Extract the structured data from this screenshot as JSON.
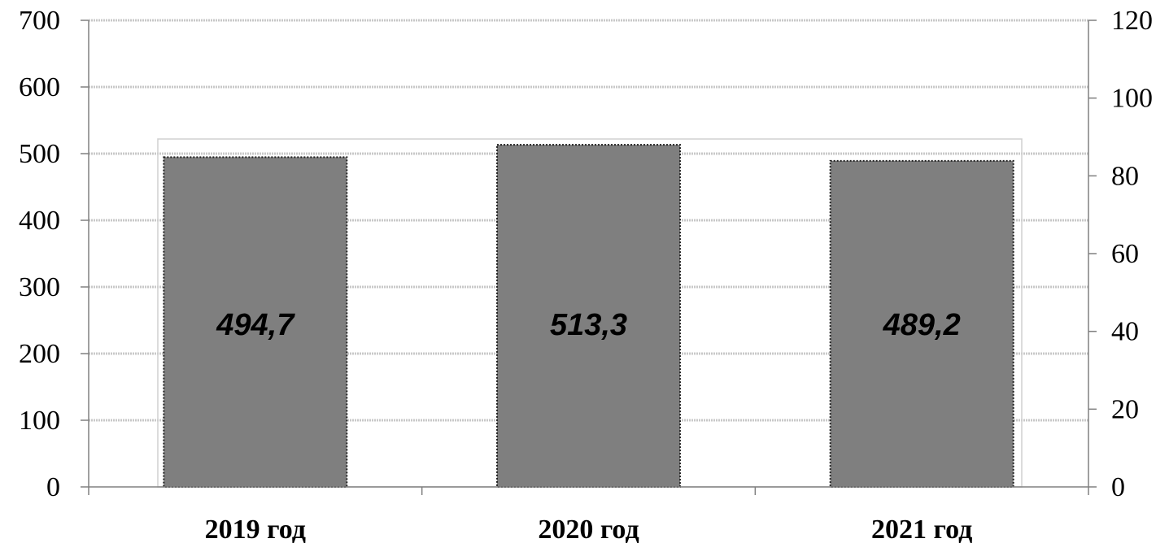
{
  "chart_data": {
    "type": "bar",
    "categories": [
      "2019 год",
      "2020 год",
      "2021 год"
    ],
    "series": [
      {
        "values": [
          494.7,
          513.3,
          489.2
        ]
      }
    ],
    "data_labels": [
      "494,7",
      "513,3",
      "489,2"
    ],
    "y_left": {
      "ylim": [
        0,
        700
      ],
      "ticks": [
        "0",
        "100",
        "200",
        "300",
        "400",
        "500",
        "600",
        "700"
      ]
    },
    "y_right": {
      "ylim": [
        0,
        120
      ],
      "ticks": [
        "0",
        "20",
        "40",
        "60",
        "80",
        "100",
        "120"
      ]
    },
    "grid": true,
    "colors": {
      "bar": "#7f7f7f",
      "grid": "#c8c8c8",
      "axis": "#808080"
    }
  }
}
